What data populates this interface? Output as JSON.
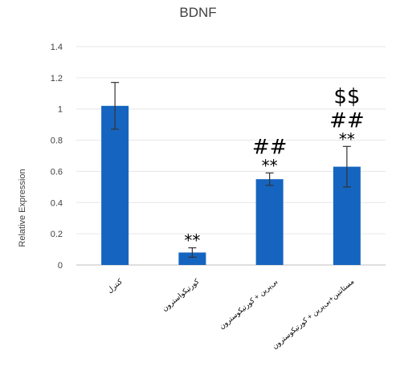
{
  "chart_data": {
    "type": "bar",
    "title": "BDNF",
    "xlabel": "",
    "ylabel": "Relative Expression",
    "ylim": [
      0,
      1.4
    ],
    "yticks": [
      "0",
      "0.2",
      "0.4",
      "0.6",
      "0.8",
      "1",
      "1.2",
      "1.4"
    ],
    "grid": true,
    "categories": [
      "کنترل",
      "کورتیکواسترون",
      "بی‌پرین + کورتیکوسترون",
      "مستانتین+بی‌پرین + کورتیکوسترون"
    ],
    "values": [
      1.02,
      0.08,
      0.55,
      0.63
    ],
    "errors": [
      0.15,
      0.03,
      0.04,
      0.13
    ],
    "annotations": [
      [],
      [
        "**"
      ],
      [
        "**",
        "##"
      ],
      [
        "**",
        "##",
        "$$"
      ]
    ],
    "bar_color": "#1565c0"
  }
}
